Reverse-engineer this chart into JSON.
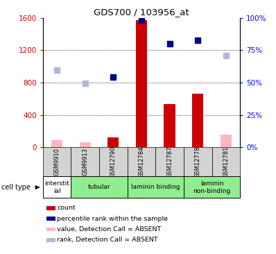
{
  "title": "GDS700 / 103956_at",
  "samples": [
    "GSM9910",
    "GSM9913",
    "GSM12790",
    "GSM12784",
    "GSM12787",
    "GSM12778",
    "GSM12781"
  ],
  "cell_types": [
    {
      "label": "interstit\nial",
      "start": 0,
      "end": 1,
      "color": "#ffffff"
    },
    {
      "label": "tubular",
      "start": 1,
      "end": 3,
      "color": "#90ee90"
    },
    {
      "label": "laminin binding",
      "start": 3,
      "end": 5,
      "color": "#90ee90"
    },
    {
      "label": "laminin\nnon-binding",
      "start": 5,
      "end": 7,
      "color": "#90ee90"
    }
  ],
  "counts": [
    null,
    null,
    120,
    1570,
    530,
    660,
    null
  ],
  "absent_values": [
    90,
    60,
    null,
    null,
    null,
    null,
    160
  ],
  "ranks": [
    null,
    null,
    870,
    1570,
    1280,
    1320,
    null
  ],
  "absent_ranks": [
    950,
    790,
    null,
    null,
    null,
    null,
    1130
  ],
  "ylim_left": [
    0,
    1600
  ],
  "yticks_left": [
    0,
    400,
    800,
    1200,
    1600
  ],
  "ytick_labels_right": [
    "0%",
    "25%",
    "50%",
    "75%",
    "100%"
  ],
  "bar_color": "#cc0000",
  "absent_bar_color": "#ffb6c1",
  "rank_color": "#00008b",
  "absent_rank_color": "#b0b8d8",
  "sample_bg": "#d3d3d3",
  "legend_items": [
    {
      "color": "#cc0000",
      "label": "count"
    },
    {
      "color": "#00008b",
      "label": "percentile rank within the sample"
    },
    {
      "color": "#ffb6c1",
      "label": "value, Detection Call = ABSENT"
    },
    {
      "color": "#b0b8d8",
      "label": "rank, Detection Call = ABSENT"
    }
  ]
}
